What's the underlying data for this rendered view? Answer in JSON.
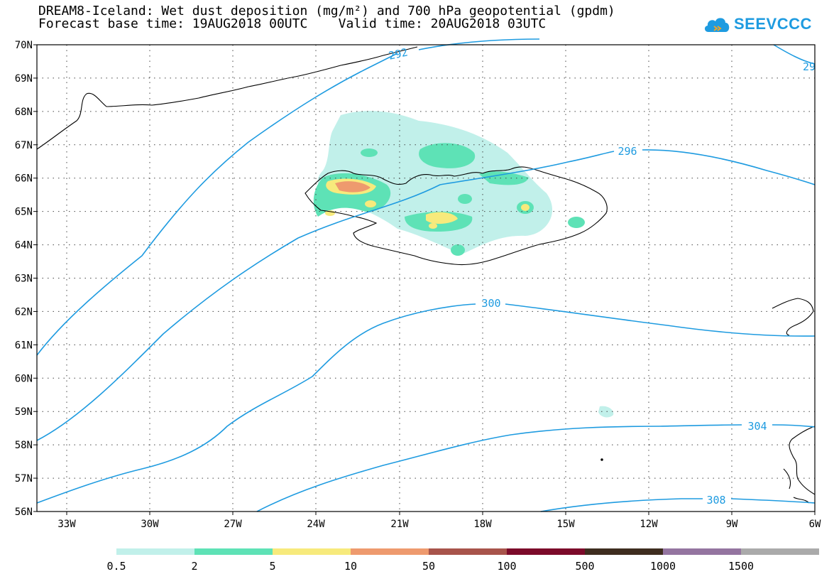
{
  "header": {
    "title_line1": "DREAM8-Iceland: Wet dust deposition (mg/m²) and 700 hPa geopotential (gpdm)",
    "title_line2": "Forecast base time: 19AUG2018 00UTC    Valid time: 20AUG2018 03UTC"
  },
  "logo": {
    "text": "SEEVCCC",
    "icon": "cloud-icon",
    "color": "#1e9be0"
  },
  "map": {
    "lat_labels": [
      "70N",
      "69N",
      "68N",
      "67N",
      "66N",
      "65N",
      "64N",
      "63N",
      "62N",
      "61N",
      "60N",
      "59N",
      "58N",
      "57N",
      "56N"
    ],
    "lon_labels": [
      "33W",
      "30W",
      "27W",
      "24W",
      "21W",
      "18W",
      "15W",
      "12W",
      "9W",
      "6W"
    ],
    "contour_labels": [
      "292",
      "29",
      "296",
      "300",
      "304",
      "308"
    ],
    "contour_color": "#1e9be0",
    "grid": "dotted"
  },
  "legend": {
    "colors": [
      "#c1f0ea",
      "#5ee2b6",
      "#f7ea7c",
      "#ee9a6e",
      "#a8544b",
      "#7c0a2a",
      "#3e2d1f",
      "#9475a0",
      "#aaaaaa"
    ],
    "labels": [
      "0.5",
      "2",
      "5",
      "10",
      "50",
      "100",
      "500",
      "1000",
      "1500"
    ]
  }
}
